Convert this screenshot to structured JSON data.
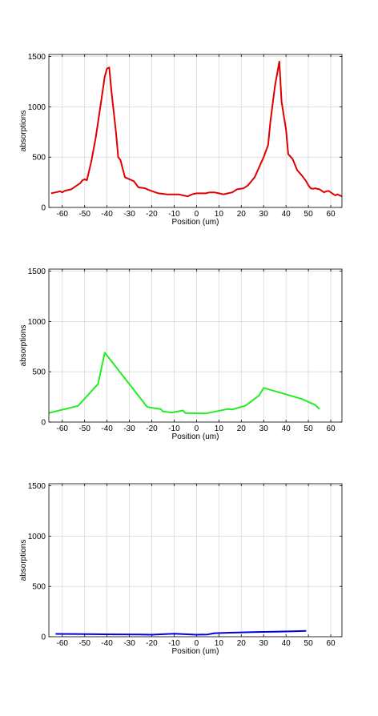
{
  "chart_data": [
    {
      "type": "line",
      "xlabel": "Position (um)",
      "ylabel": "absorptions",
      "xlim": [
        -66,
        65
      ],
      "ylim": [
        0,
        1520
      ],
      "xticks": [
        -60,
        -50,
        -40,
        -30,
        -20,
        -10,
        0,
        10,
        20,
        30,
        40,
        50,
        60
      ],
      "yticks": [
        0,
        500,
        1000,
        1500
      ],
      "grid": true,
      "series": [
        {
          "color": "#e00000",
          "x": [
            -65,
            -63,
            -61,
            -60,
            -59,
            -58,
            -56,
            -54,
            -52,
            -51,
            -50,
            -49,
            -47,
            -45,
            -43,
            -41,
            -40,
            -39,
            -38,
            -36,
            -35,
            -34,
            -32,
            -30,
            -28,
            -26,
            -23,
            -21,
            -17,
            -13,
            -8,
            -6,
            -4,
            -2,
            0,
            2,
            4,
            6,
            8,
            10,
            12,
            14,
            16,
            18,
            21,
            23,
            26,
            28,
            30,
            32,
            33,
            35,
            37,
            38,
            40,
            41,
            43,
            45,
            47,
            49,
            50,
            51,
            52,
            53,
            55,
            56,
            57,
            58,
            59,
            60,
            62,
            63,
            65
          ],
          "y": [
            140,
            150,
            160,
            150,
            165,
            170,
            180,
            210,
            240,
            270,
            280,
            270,
            460,
            700,
            1000,
            1300,
            1380,
            1390,
            1150,
            750,
            500,
            470,
            300,
            280,
            260,
            200,
            190,
            170,
            140,
            130,
            130,
            120,
            110,
            130,
            140,
            140,
            140,
            150,
            150,
            140,
            130,
            140,
            150,
            180,
            190,
            220,
            300,
            400,
            500,
            620,
            850,
            1200,
            1450,
            1050,
            770,
            530,
            480,
            370,
            320,
            260,
            220,
            190,
            185,
            190,
            180,
            165,
            150,
            160,
            165,
            150,
            120,
            130,
            110
          ]
        }
      ]
    },
    {
      "type": "line",
      "xlabel": "Position (um)",
      "ylabel": "absorptions",
      "xlim": [
        -66,
        65
      ],
      "ylim": [
        0,
        1520
      ],
      "xticks": [
        -60,
        -50,
        -40,
        -30,
        -20,
        -10,
        0,
        10,
        20,
        30,
        40,
        50,
        60
      ],
      "yticks": [
        0,
        500,
        1000,
        1500
      ],
      "grid": true,
      "series": [
        {
          "color": "#22ee22",
          "x": [
            -66,
            -55,
            -53,
            -44,
            -41,
            -22,
            -18,
            -16,
            -15,
            -11,
            -6,
            -5,
            4,
            14,
            16,
            22,
            28,
            30,
            47,
            53,
            55
          ],
          "y": [
            90,
            150,
            160,
            380,
            690,
            150,
            135,
            130,
            105,
            95,
            115,
            90,
            85,
            130,
            125,
            165,
            265,
            340,
            230,
            170,
            130
          ]
        }
      ]
    },
    {
      "type": "line",
      "xlabel": "Position (um)",
      "ylabel": "absorptions",
      "xlim": [
        -66,
        65
      ],
      "ylim": [
        0,
        1520
      ],
      "xticks": [
        -60,
        -50,
        -40,
        -30,
        -20,
        -10,
        0,
        10,
        20,
        30,
        40,
        50,
        60
      ],
      "yticks": [
        0,
        500,
        1000,
        1500
      ],
      "grid": true,
      "series": [
        {
          "color": "#0000dd",
          "x": [
            -63,
            -55,
            -45,
            -35,
            -25,
            -20,
            -15,
            -10,
            -5,
            0,
            5,
            8,
            15,
            25,
            35,
            45,
            49
          ],
          "y": [
            28,
            27,
            25,
            23,
            22,
            20,
            25,
            30,
            25,
            20,
            22,
            35,
            40,
            45,
            50,
            55,
            58
          ]
        }
      ]
    }
  ]
}
